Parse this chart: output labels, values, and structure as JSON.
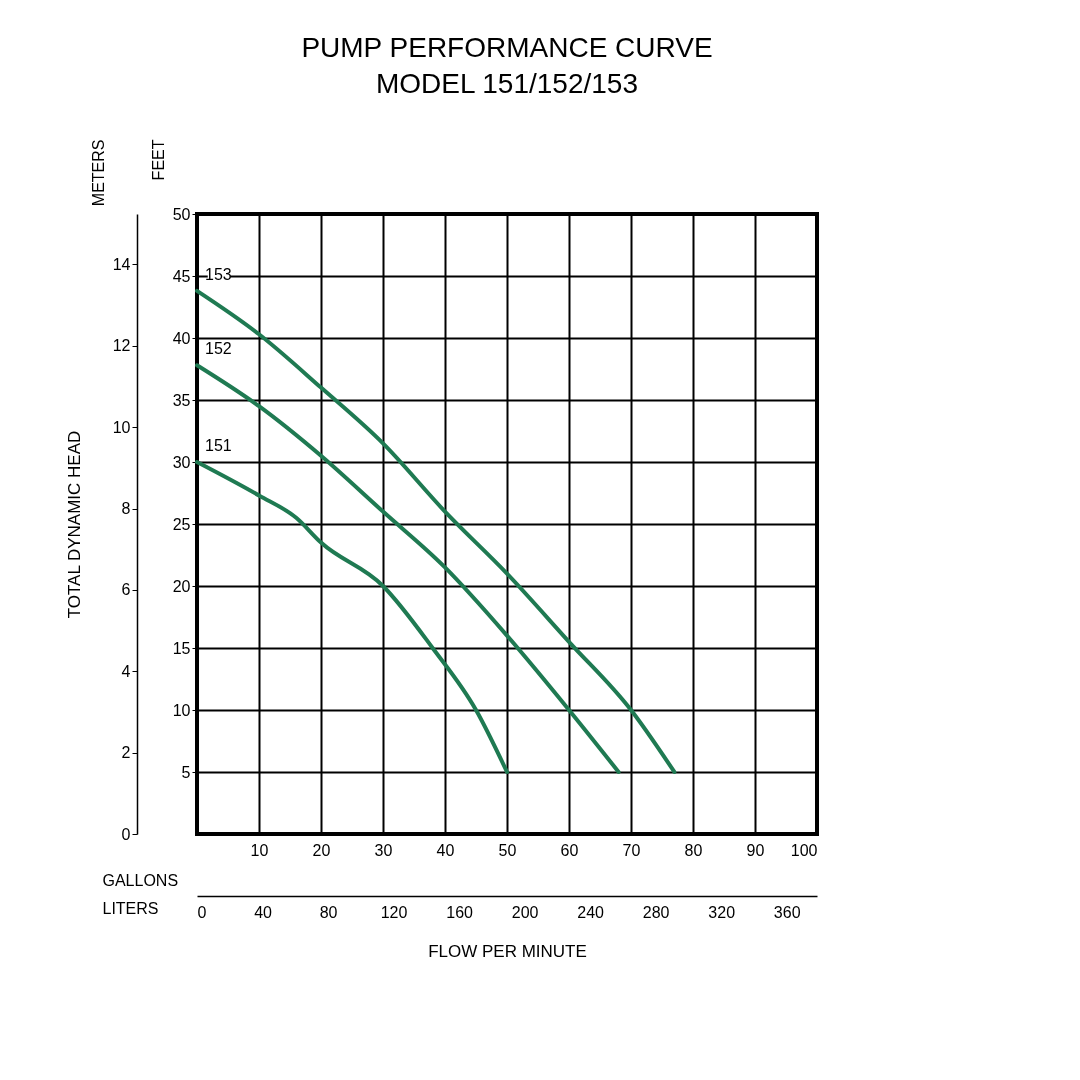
{
  "chart_data": {
    "type": "line",
    "title": "PUMP PERFORMANCE CURVE",
    "subtitle": "MODEL 151/152/153",
    "xlabel": "GALLONS",
    "x2label": "LITERS",
    "ylabel": "FEET",
    "y2label": "METERS",
    "annotations": [
      "FLOW PER MINUTE",
      "TOTAL DYNAMIC HEAD"
    ],
    "xlim": [
      0,
      100
    ],
    "xticks": [
      10,
      20,
      30,
      40,
      50,
      60,
      70,
      80,
      90,
      100
    ],
    "x2lim": [
      0,
      378.5
    ],
    "x2ticks": [
      0,
      40,
      80,
      120,
      160,
      200,
      240,
      280,
      320,
      360
    ],
    "ylim": [
      0,
      50
    ],
    "yticks": [
      5,
      10,
      15,
      20,
      25,
      30,
      35,
      40,
      45,
      50
    ],
    "y2lim": [
      0,
      15.24
    ],
    "y2ticks": [
      0,
      2,
      4,
      6,
      8,
      10,
      12,
      14
    ],
    "grid": true,
    "legend": false,
    "marker": "none",
    "line_style": "solid",
    "series": [
      {
        "name": "153",
        "color": "#1f7a52",
        "x": [
          0,
          10,
          20,
          30,
          40,
          50,
          60,
          70,
          77
        ],
        "values": [
          43.8,
          40.3,
          36,
          31.5,
          26,
          21,
          15.5,
          10,
          5
        ]
      },
      {
        "name": "152",
        "color": "#1f7a52",
        "x": [
          0,
          10,
          20,
          30,
          40,
          50,
          60,
          68
        ],
        "values": [
          37.8,
          34.5,
          30.5,
          26,
          21.5,
          16,
          10,
          5
        ]
      },
      {
        "name": "151",
        "color": "#1f7a52",
        "x": [
          0,
          10,
          16,
          20,
          30,
          38,
          45,
          50
        ],
        "values": [
          30,
          27.3,
          25.5,
          23.5,
          20,
          15,
          10,
          5
        ]
      }
    ]
  }
}
